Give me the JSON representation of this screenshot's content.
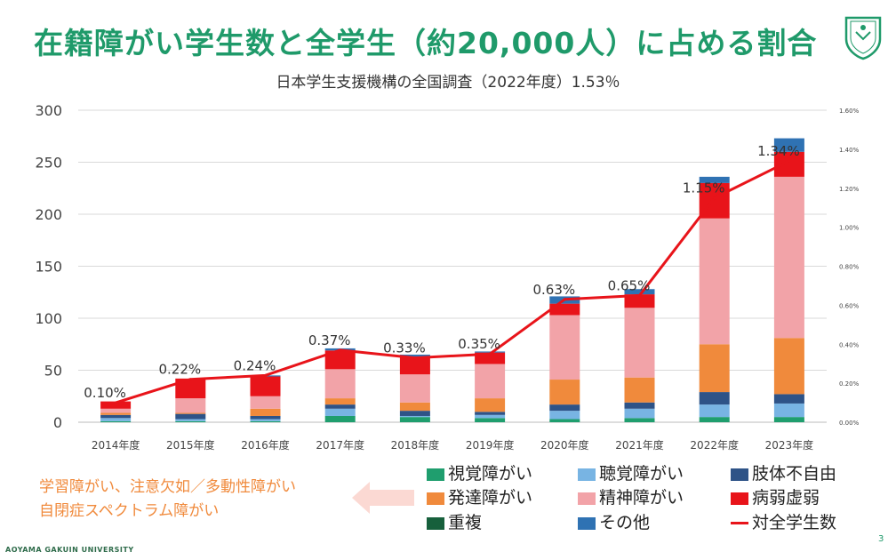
{
  "title": "在籍障がい学生数と全学生（約20,000人）に占める割合",
  "subtitle": "日本学生支援機構の全国調査（2022年度）1.53％",
  "footer": "AOYAMA GAKUIN UNIVERSITY",
  "page_number": "3",
  "note_lines": [
    "学習障がい、注意欠如／多動性障がい",
    "自閉症スペクトラム障がい"
  ],
  "colors": {
    "title": "#1f9a6a",
    "note": "#f08a3c",
    "line": "#e8141a"
  },
  "chart_data": {
    "type": "bar",
    "stacked": true,
    "categories": [
      "2014年度",
      "2015年度",
      "2016年度",
      "2017年度",
      "2018年度",
      "2019年度",
      "2020年度",
      "2021年度",
      "2022年度",
      "2023年度"
    ],
    "ylim": [
      0,
      300
    ],
    "yticks": [
      0,
      50,
      100,
      150,
      200,
      250,
      300
    ],
    "y2lim": [
      0,
      1.6
    ],
    "y2ticks": [
      "0.00%",
      "0.20%",
      "0.40%",
      "0.60%",
      "0.80%",
      "1.00%",
      "1.20%",
      "1.40%",
      "1.60%"
    ],
    "grid": true,
    "series": [
      {
        "name": "視覚障がい",
        "color": "#1f9e6e",
        "values": [
          1,
          1,
          1,
          6,
          5,
          4,
          3,
          4,
          5,
          5
        ]
      },
      {
        "name": "聴覚障がい",
        "color": "#78b4e3",
        "values": [
          3,
          2,
          2,
          7,
          1,
          3,
          8,
          9,
          12,
          13
        ]
      },
      {
        "name": "肢体不自由",
        "color": "#2e5387",
        "values": [
          3,
          5,
          3,
          4,
          5,
          3,
          6,
          6,
          12,
          9
        ]
      },
      {
        "name": "発達障がい",
        "color": "#f08a3c",
        "values": [
          2,
          1,
          7,
          6,
          8,
          13,
          24,
          24,
          46,
          54
        ]
      },
      {
        "name": "精神障がい",
        "color": "#f2a3a8",
        "values": [
          4,
          14,
          12,
          28,
          27,
          33,
          62,
          67,
          121,
          155
        ]
      },
      {
        "name": "病弱虚弱",
        "color": "#e8141a",
        "values": [
          7,
          19,
          19,
          18,
          17,
          11,
          11,
          13,
          34,
          24
        ]
      },
      {
        "name": "重複",
        "color": "#17603c",
        "values": [
          0,
          0,
          0,
          0,
          0,
          0,
          0,
          0,
          0,
          0
        ]
      },
      {
        "name": "その他",
        "color": "#2f72b3",
        "values": [
          0,
          0,
          1,
          2,
          2,
          1,
          7,
          5,
          6,
          13
        ]
      }
    ],
    "line_series": {
      "name": "対全学生数",
      "color": "#e8141a",
      "values": [
        0.1,
        0.22,
        0.24,
        0.37,
        0.33,
        0.35,
        0.63,
        0.65,
        1.15,
        1.34
      ],
      "labels": [
        "0.10%",
        "0.22%",
        "0.24%",
        "0.37%",
        "0.33%",
        "0.35%",
        "0.63%",
        "0.65%",
        "1.15%",
        "1.34%"
      ]
    },
    "legend_placement": "bottom-right"
  }
}
